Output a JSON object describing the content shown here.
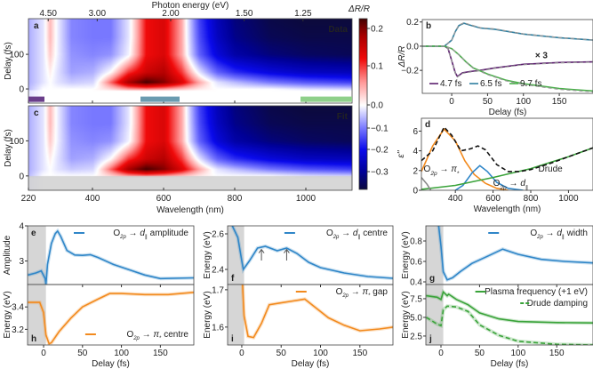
{
  "chart_data": [
    {
      "panel": "a",
      "type": "heatmap",
      "label": "a",
      "title": "Data",
      "xlabel": "Wavelength (nm)",
      "ylabel": "Delay (fs)",
      "top_axis": {
        "label": "Photon energy (eV)",
        "ticks": [
          4.5,
          3.0,
          2.0,
          1.5,
          1.25
        ],
        "tick_labels": [
          "4.50",
          "3.00",
          "2.00",
          "1.50",
          "1.25"
        ]
      },
      "xlim": [
        220,
        1130
      ],
      "ylim": [
        -41,
        203
      ],
      "xticks": [
        220,
        400,
        600,
        800,
        1000
      ],
      "xtick_labels": [
        "220",
        "400",
        "600",
        "800",
        "1000"
      ],
      "yticks": [
        0,
        100
      ],
      "ytick_labels": [
        "0",
        "100"
      ],
      "wavelengths": [
        220,
        260,
        280,
        300,
        340,
        400,
        450,
        500,
        550,
        600,
        650,
        700,
        750,
        800,
        900,
        1000,
        1130
      ],
      "delays": [
        -40,
        -5,
        0,
        20,
        50,
        100,
        150,
        200
      ],
      "values": [
        [
          -0.02,
          0,
          0,
          0,
          0,
          0,
          0,
          0,
          0,
          0,
          0,
          0,
          0,
          0,
          0,
          0,
          0
        ],
        [
          -0.02,
          0,
          0,
          0,
          0,
          0,
          0,
          0,
          0,
          0,
          0,
          0,
          0,
          0,
          0,
          0,
          0
        ],
        [
          -0.05,
          0,
          0,
          0,
          0,
          0,
          0.02,
          0.05,
          0.06,
          0.05,
          0.03,
          0.01,
          0,
          0,
          0,
          -0.02,
          -0.03
        ],
        [
          -0.06,
          -0.02,
          0,
          -0.02,
          -0.04,
          -0.03,
          0.08,
          0.18,
          0.23,
          0.2,
          0.14,
          0.05,
          -0.02,
          -0.05,
          -0.1,
          -0.13,
          -0.15
        ],
        [
          -0.06,
          -0.02,
          0.01,
          -0.02,
          -0.07,
          -0.06,
          0,
          0.1,
          0.15,
          0.17,
          0.1,
          -0.02,
          -0.12,
          -0.17,
          -0.22,
          -0.25,
          -0.26
        ],
        [
          -0.06,
          -0.02,
          0.03,
          -0.01,
          -0.08,
          -0.09,
          -0.08,
          -0.01,
          0.12,
          0.14,
          0.05,
          -0.12,
          -0.22,
          -0.28,
          -0.32,
          -0.34,
          -0.35
        ],
        [
          -0.06,
          -0.02,
          0.04,
          -0.01,
          -0.09,
          -0.1,
          -0.1,
          -0.02,
          0.12,
          0.14,
          0.05,
          -0.14,
          -0.25,
          -0.31,
          -0.35,
          -0.36,
          -0.36
        ],
        [
          -0.06,
          -0.02,
          0.04,
          -0.01,
          -0.09,
          -0.1,
          -0.1,
          -0.02,
          0.12,
          0.14,
          0.05,
          -0.15,
          -0.26,
          -0.32,
          -0.36,
          -0.37,
          -0.37
        ]
      ],
      "bands": [
        {
          "from": 220,
          "to": 265,
          "color": "#6a3d8a"
        },
        {
          "from": 535,
          "to": 645,
          "color": "#6a9bb0"
        },
        {
          "from": 985,
          "to": 1130,
          "color": "#8fd08a"
        }
      ],
      "colorbar": {
        "label": "ΔR/R",
        "ticks": [
          0.2,
          0.1,
          0.0,
          -0.1,
          -0.2,
          -0.3
        ],
        "tick_labels": [
          "0.2",
          "0.1",
          "0.0",
          "−0.1",
          "−0.2",
          "−0.3"
        ],
        "range": [
          -0.37,
          0.23
        ]
      }
    },
    {
      "panel": "c",
      "type": "heatmap",
      "label": "c",
      "title": "Fit",
      "xlabel": "Wavelength (nm)",
      "ylabel": "Delay (fs)",
      "xlim": [
        220,
        1130
      ],
      "ylim": [
        -41,
        200
      ],
      "xticks": [
        220,
        400,
        600,
        800,
        1000
      ],
      "xtick_labels": [
        "220",
        "400",
        "600",
        "800",
        "1000"
      ],
      "yticks": [
        0,
        100
      ],
      "ytick_labels": [
        "0",
        "100"
      ],
      "masked_below_delay": 0
    },
    {
      "panel": "b",
      "type": "line",
      "label": "b",
      "xlabel": "Delay (fs)",
      "ylabel": "ΔR/R",
      "xlim": [
        -41,
        197
      ],
      "ylim": [
        -0.39,
        0.22
      ],
      "xticks": [
        0,
        50,
        100,
        150
      ],
      "xtick_labels": [
        "0",
        "50",
        "100",
        "150"
      ],
      "yticks": [
        0.2,
        0.0,
        -0.2
      ],
      "ytick_labels": [
        "0.2",
        "0.0",
        "−0.2"
      ],
      "annotation": {
        "text": "× 3",
        "x": 125,
        "y": -0.1,
        "color": "#5b1f6e"
      },
      "legend_position": "bottom-left",
      "series": [
        {
          "name": "4.7 fs",
          "color": "#5b1f6e",
          "fit": true,
          "x": [
            -41,
            -10,
            -5,
            0,
            5,
            8,
            15,
            25,
            40,
            60,
            100,
            150,
            197
          ],
          "y": [
            0,
            0,
            -0.02,
            -0.12,
            -0.22,
            -0.25,
            -0.22,
            -0.21,
            -0.2,
            -0.18,
            -0.15,
            -0.135,
            -0.13
          ]
        },
        {
          "name": "6.5 fs",
          "color": "#2f7fa0",
          "fit": true,
          "x": [
            -41,
            -10,
            0,
            5,
            10,
            17,
            25,
            40,
            60,
            100,
            150,
            197
          ],
          "y": [
            0,
            0,
            0.05,
            0.12,
            0.17,
            0.19,
            0.175,
            0.15,
            0.14,
            0.1,
            0.07,
            0.05
          ]
        },
        {
          "name": "9.7 fs",
          "color": "#4cb04c",
          "fit": true,
          "x": [
            -41,
            -10,
            0,
            10,
            20,
            30,
            50,
            75,
            100,
            150,
            197
          ],
          "y": [
            0,
            0,
            -0.02,
            -0.07,
            -0.13,
            -0.18,
            -0.23,
            -0.28,
            -0.31,
            -0.35,
            -0.37
          ]
        }
      ]
    },
    {
      "panel": "d",
      "type": "line",
      "label": "d",
      "xlabel": "Wavelength (nm)",
      "ylabel": "ε''",
      "xlim": [
        220,
        1130
      ],
      "ylim": [
        0,
        7.3
      ],
      "xticks": [
        400,
        600,
        800,
        1000
      ],
      "xtick_labels": [
        "400",
        "600",
        "800",
        "1000"
      ],
      "yticks": [
        0,
        2,
        4,
        6
      ],
      "ytick_labels": [
        "0",
        "2",
        "4",
        "6"
      ],
      "series": [
        {
          "name": "O2p → π*",
          "color": "#f28a1e",
          "x": [
            220,
            280,
            340,
            400,
            450,
            500,
            560,
            620,
            680
          ],
          "y": [
            1.9,
            4.5,
            6.2,
            5.0,
            3.0,
            1.6,
            0.7,
            0.2,
            0
          ],
          "text": {
            "main": "O",
            "sub": "2p",
            "mid": " → ",
            "sym": "π",
            "symsub": "*",
            "post": ""
          },
          "tx": 232,
          "ty": 1.9
        },
        {
          "name": "O2p → d∥",
          "color": "#2f86c8",
          "x": [
            400,
            440,
            490,
            530,
            570,
            620,
            680,
            760
          ],
          "y": [
            0,
            0.5,
            1.8,
            2.5,
            1.9,
            0.8,
            0.2,
            0
          ],
          "text": {
            "main": "O",
            "sub": "2p",
            "mid": " → ",
            "sym": "d",
            "symsub": "∥",
            "post": ""
          },
          "tx": 600,
          "ty": 0.45
        },
        {
          "name": "Drude",
          "color": "#3aa33a",
          "x": [
            220,
            400,
            500,
            600,
            700,
            800,
            900,
            1000,
            1130
          ],
          "y": [
            0.1,
            0.5,
            0.9,
            1.3,
            1.75,
            2.2,
            2.8,
            3.4,
            4.3
          ],
          "text": "Drude",
          "tx": 840,
          "ty": 1.9
        },
        {
          "name": "UV",
          "color": "#888888",
          "x": [
            220,
            250,
            270
          ],
          "y": [
            1.3,
            0.6,
            0
          ]
        },
        {
          "name": "Total",
          "color": "#111111",
          "dashed": true,
          "x": [
            220,
            280,
            340,
            380,
            430,
            480,
            520,
            560,
            620,
            680,
            740,
            800,
            900,
            1000,
            1130
          ],
          "y": [
            3.0,
            4.0,
            6.4,
            5.6,
            4.0,
            4.2,
            4.5,
            4.1,
            2.6,
            1.9,
            1.9,
            2.1,
            2.7,
            3.4,
            4.3
          ]
        }
      ]
    },
    {
      "panel": "e",
      "type": "line",
      "label": "e",
      "ylabel": "Amplitude",
      "xlim": [
        -20.6,
        193
      ],
      "ylim": [
        2.33,
        4
      ],
      "xticks": [
        0,
        50,
        100,
        150
      ],
      "yticks": [
        3,
        4
      ],
      "ytick_labels": [
        "3",
        "4"
      ],
      "shade_before": 3,
      "legend_position": "top-right",
      "series": [
        {
          "name": "O2p → d∥ amplitude",
          "color": "#2f86c8",
          "x": [
            -20,
            -10,
            -3,
            2,
            3,
            5,
            10,
            15,
            18,
            22,
            30,
            40,
            50,
            60,
            70,
            90,
            110,
            130,
            150,
            193
          ],
          "y": [
            2.6,
            2.66,
            2.72,
            2.5,
            2.33,
            2.9,
            3.5,
            3.78,
            3.85,
            3.7,
            3.3,
            3.17,
            3.16,
            3.18,
            3.1,
            2.9,
            2.75,
            2.6,
            2.5,
            2.52
          ],
          "text": {
            "main": "O",
            "sub": "2p",
            "mid": " → ",
            "sym": "d",
            "symsub": "∥",
            "post": " amplitude"
          }
        }
      ]
    },
    {
      "panel": "h",
      "type": "line",
      "label": "h",
      "xlabel": "Delay (fs)",
      "ylabel": "Energy (eV)",
      "xlim": [
        -20.6,
        193
      ],
      "ylim": [
        3.06,
        3.6
      ],
      "xticks": [
        0,
        50,
        100,
        150
      ],
      "xtick_labels": [
        "0",
        "50",
        "100",
        "150"
      ],
      "yticks": [
        3.2,
        3.4
      ],
      "ytick_labels": [
        "3.2",
        "3.4"
      ],
      "shade_before": 3,
      "legend_position": "bottom-right",
      "series": [
        {
          "name": "O2p → π* centre",
          "color": "#f28a1e",
          "x": [
            -20,
            -5,
            0,
            3,
            7,
            10,
            20,
            35,
            50,
            70,
            85,
            100,
            130,
            160,
            193
          ],
          "y": [
            3.44,
            3.44,
            3.35,
            3.15,
            3.07,
            3.08,
            3.18,
            3.3,
            3.4,
            3.47,
            3.52,
            3.52,
            3.51,
            3.51,
            3.53
          ],
          "text": {
            "main": "O",
            "sub": "2p",
            "mid": " → ",
            "sym": "π",
            "symsub": "*",
            "post": " centre"
          }
        }
      ]
    },
    {
      "panel": "f",
      "type": "line",
      "label": "f",
      "ylabel": "Energy (eV)",
      "xlim": [
        -18,
        192
      ],
      "ylim": [
        2.315,
        2.645
      ],
      "xticks": [
        0,
        50,
        100,
        150
      ],
      "yticks": [
        2.4,
        2.6
      ],
      "ytick_labels": [
        "2.4",
        "2.6"
      ],
      "shade_before": 3,
      "legend_position": "top-right",
      "arrows_at": [
        25,
        57
      ],
      "series": [
        {
          "name": "O2p → d∥ centre",
          "color": "#2f86c8",
          "x": [
            -12,
            -5,
            0,
            2,
            10,
            20,
            30,
            45,
            57,
            70,
            85,
            100,
            130,
            160,
            192
          ],
          "y": [
            2.645,
            2.58,
            2.45,
            2.4,
            2.45,
            2.52,
            2.53,
            2.505,
            2.52,
            2.49,
            2.44,
            2.41,
            2.38,
            2.36,
            2.35
          ],
          "text": {
            "main": "O",
            "sub": "2p",
            "mid": " → ",
            "sym": "d",
            "symsub": "∥",
            "post": " centre"
          }
        }
      ]
    },
    {
      "panel": "i",
      "type": "line",
      "label": "i",
      "xlabel": "Delay (fs)",
      "ylabel": "Energy (eV)",
      "xlim": [
        -18,
        192
      ],
      "ylim": [
        1.552,
        1.714
      ],
      "xticks": [
        0,
        50,
        100,
        150
      ],
      "xtick_labels": [
        "0",
        "50",
        "100",
        "150"
      ],
      "yticks": [
        1.6,
        1.7
      ],
      "ytick_labels": [
        "1.6",
        "1.7"
      ],
      "shade_before": 3,
      "legend_position": "top-right",
      "series": [
        {
          "name": "O2p → π* gap",
          "color": "#f28a1e",
          "x": [
            1,
            3,
            8,
            15,
            25,
            35,
            50,
            65,
            80,
            95,
            110,
            130,
            150,
            175,
            192
          ],
          "y": [
            1.714,
            1.63,
            1.575,
            1.572,
            1.61,
            1.66,
            1.665,
            1.67,
            1.675,
            1.65,
            1.625,
            1.605,
            1.59,
            1.595,
            1.6
          ],
          "text": {
            "main": "O",
            "sub": "2p",
            "mid": " → ",
            "sym": "π",
            "symsub": "*",
            "post": " gap"
          }
        }
      ]
    },
    {
      "panel": "g",
      "type": "line",
      "label": "g",
      "ylabel": "Energy (eV)",
      "xlim": [
        -19.6,
        197
      ],
      "ylim": [
        0.374,
        0.948
      ],
      "xticks": [
        0,
        50,
        100,
        150
      ],
      "yticks": [
        0.4,
        0.6,
        0.8
      ],
      "ytick_labels": [
        "0.4",
        "0.6",
        "0.8"
      ],
      "shade_before": 3,
      "legend_position": "top-right",
      "series": [
        {
          "name": "O2p → d∥ width",
          "color": "#2f86c8",
          "x": [
            -3,
            0,
            3,
            8,
            15,
            25,
            40,
            60,
            80,
            100,
            130,
            160,
            197
          ],
          "y": [
            0.948,
            0.75,
            0.5,
            0.42,
            0.44,
            0.5,
            0.58,
            0.65,
            0.72,
            0.67,
            0.62,
            0.6,
            0.585
          ],
          "text": {
            "main": "O",
            "sub": "2p",
            "mid": " → ",
            "sym": "d",
            "symsub": "∥",
            "post": " width"
          }
        }
      ]
    },
    {
      "panel": "j",
      "type": "line",
      "label": "j",
      "xlabel": "Delay (fs)",
      "ylabel": "Energy (eV)",
      "xlim": [
        -19.6,
        197
      ],
      "ylim": [
        1.3,
        9.4
      ],
      "xticks": [
        0,
        50,
        100,
        150
      ],
      "xtick_labels": [
        "0",
        "50",
        "100",
        "150"
      ],
      "yticks": [
        2.5,
        5.0,
        7.5
      ],
      "ytick_labels": [
        "2.5",
        "5.0",
        "7.5"
      ],
      "shade_before": 3,
      "legend_position": "top-right",
      "series": [
        {
          "name": "Plasma frequency (+1 eV)",
          "color": "#3aa33a",
          "x": [
            -19,
            -5,
            0,
            3,
            8,
            10,
            20,
            35,
            50,
            75,
            100,
            150,
            197
          ],
          "y": [
            7.9,
            7.7,
            7.4,
            8.4,
            7.9,
            8.1,
            7.4,
            6.7,
            5.6,
            4.8,
            4.45,
            4.3,
            4.25
          ],
          "text": "Plasma frequency (+1 eV)"
        },
        {
          "name": "Drude damping",
          "color": "#3aa33a",
          "dashed": true,
          "x": [
            -19,
            -5,
            0,
            3,
            8,
            20,
            35,
            50,
            75,
            100,
            150,
            197
          ],
          "y": [
            5.0,
            4.1,
            3.9,
            6.0,
            6.5,
            6.4,
            5.8,
            4.0,
            2.6,
            1.8,
            1.4,
            1.3
          ],
          "text": "Drude damping"
        }
      ]
    }
  ]
}
